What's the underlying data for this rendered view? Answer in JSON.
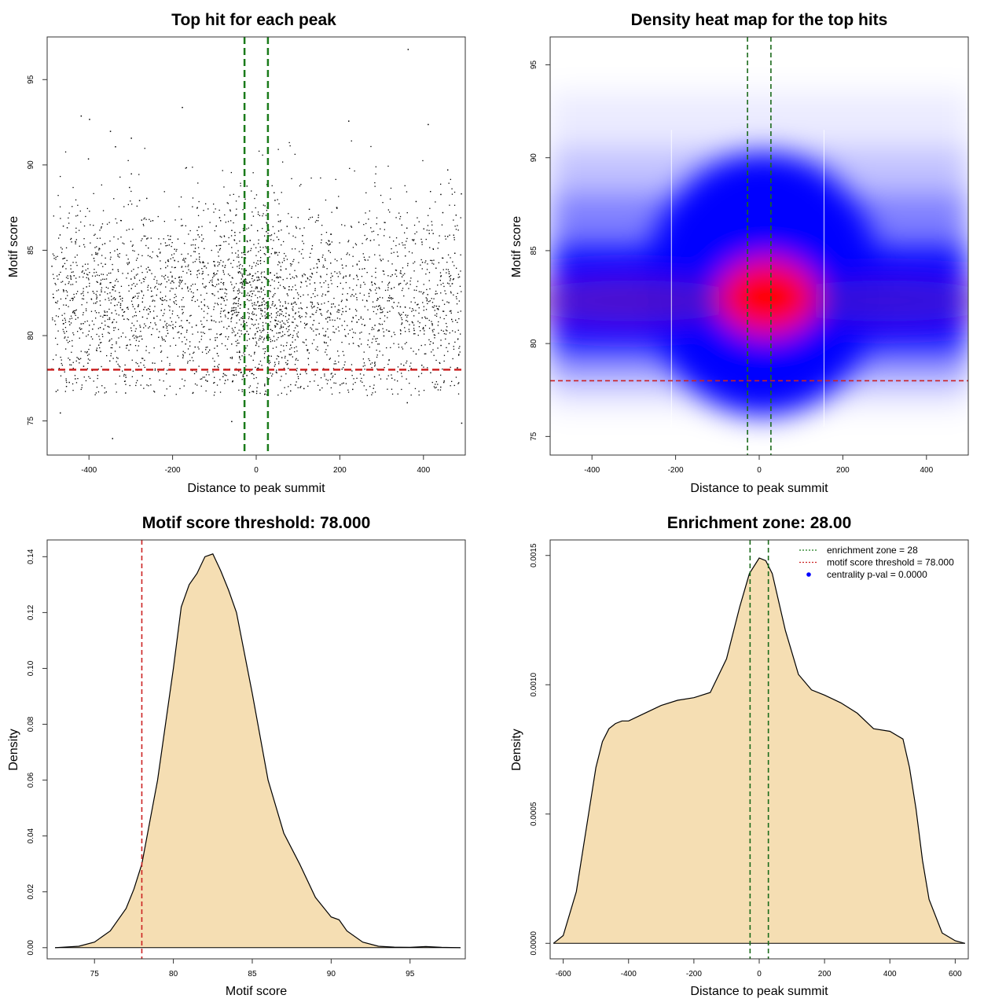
{
  "chart_data": [
    {
      "id": "scatter",
      "type": "scatter",
      "title": "Top hit for each peak",
      "xlabel": "Distance to peak summit",
      "ylabel": "Motif score",
      "xlim": [
        -500,
        500
      ],
      "ylim": [
        73,
        97.5
      ],
      "xticks": [
        -400,
        -200,
        0,
        200,
        400
      ],
      "yticks": [
        75,
        80,
        85,
        90,
        95
      ],
      "hlines": [
        {
          "y": 78,
          "color": "#cc2222",
          "style": "dashed"
        }
      ],
      "vlines": [
        {
          "x": -28,
          "color": "#1a7a1a",
          "style": "dashed"
        },
        {
          "x": 28,
          "color": "#1a7a1a",
          "style": "dashed"
        }
      ],
      "points_note_summary": {
        "n_points": 3600,
        "x_range": [
          -490,
          490
        ],
        "y_mode": 82,
        "y_spread": 3.0
      },
      "outliers": [
        {
          "x": 362,
          "y": 96.8
        },
        {
          "x": -178,
          "y": 93.4
        },
        {
          "x": -420,
          "y": 92.9
        },
        {
          "x": -400,
          "y": 92.7
        },
        {
          "x": 220,
          "y": 92.6
        },
        {
          "x": -350,
          "y": 92.0
        },
        {
          "x": -338,
          "y": 91.1
        },
        {
          "x": -300,
          "y": 91.6
        },
        {
          "x": 410,
          "y": 92.4
        },
        {
          "x": -345,
          "y": 74.0
        },
        {
          "x": -470,
          "y": 75.5
        },
        {
          "x": 490,
          "y": 74.9
        },
        {
          "x": -60,
          "y": 75.0
        },
        {
          "x": 360,
          "y": 76.1
        }
      ],
      "series": [
        {
          "values": [],
          "color": "#000000"
        }
      ]
    },
    {
      "id": "heatmap",
      "type": "heatmap",
      "title": "Density heat map for the top hits",
      "xlabel": "Distance to peak summit",
      "ylabel": "Motif score",
      "xlim": [
        -500,
        500
      ],
      "ylim": [
        74,
        96.5
      ],
      "xticks": [
        -400,
        -200,
        0,
        200,
        400
      ],
      "yticks": [
        75,
        80,
        85,
        90,
        95
      ],
      "hlines": [
        {
          "y": 78,
          "color": "#cc2222",
          "style": "dashed"
        }
      ],
      "vlines": [
        {
          "x": -28,
          "color": "#1a6a1a",
          "style": "dashed"
        },
        {
          "x": 28,
          "color": "#1a6a1a",
          "style": "dashed"
        }
      ],
      "colors": {
        "low": "#ffffff",
        "mid": "#0000ff",
        "high": "#ff0000"
      },
      "density_peak": {
        "x": 20,
        "y": 82.5
      }
    },
    {
      "id": "scoredens",
      "type": "area",
      "title": "Motif score threshold: 78.000",
      "xlabel": "Motif score",
      "ylabel": "Density",
      "xlim": [
        72,
        98.5
      ],
      "ylim": [
        -0.004,
        0.146
      ],
      "xticks": [
        75,
        80,
        85,
        90,
        95
      ],
      "yticks": [
        0.0,
        0.02,
        0.04,
        0.06,
        0.08,
        0.1,
        0.12,
        0.14
      ],
      "ytick_labels": [
        "0.00",
        "0.02",
        "0.04",
        "0.06",
        "0.08",
        "0.10",
        "0.12",
        "0.14"
      ],
      "fill": "#f5deb3",
      "vlines": [
        {
          "x": 78,
          "color": "#cc2222",
          "style": "dashed"
        }
      ],
      "x": [
        72.5,
        74,
        75,
        76,
        77,
        77.5,
        78,
        79,
        80,
        80.5,
        81,
        81.5,
        82,
        82.5,
        83,
        83.5,
        84,
        85,
        86,
        87,
        88,
        89,
        90,
        90.5,
        91,
        92,
        93,
        94,
        95,
        96,
        97,
        98.2
      ],
      "y": [
        0.0,
        0.0005,
        0.002,
        0.006,
        0.014,
        0.021,
        0.03,
        0.06,
        0.1,
        0.122,
        0.13,
        0.134,
        0.14,
        0.141,
        0.135,
        0.128,
        0.12,
        0.091,
        0.06,
        0.041,
        0.03,
        0.018,
        0.011,
        0.01,
        0.006,
        0.002,
        0.0005,
        0.0002,
        0.0001,
        0.0004,
        0.0001,
        0.0
      ]
    },
    {
      "id": "distdens",
      "type": "area",
      "title": "Enrichment zone: 28.00",
      "xlabel": "Distance to peak summit",
      "ylabel": "Density",
      "xlim": [
        -640,
        640
      ],
      "ylim": [
        -6e-05,
        0.00156
      ],
      "xticks": [
        -600,
        -400,
        -200,
        0,
        200,
        400,
        600
      ],
      "yticks": [
        0.0,
        0.0005,
        0.001,
        0.0015
      ],
      "ytick_labels": [
        "0.0000",
        "0.0005",
        "0.0010",
        "0.0015"
      ],
      "fill": "#f5deb3",
      "vlines": [
        {
          "x": -28,
          "color": "#1a6a1a",
          "style": "dashed"
        },
        {
          "x": 28,
          "color": "#1a6a1a",
          "style": "dashed"
        }
      ],
      "x": [
        -630,
        -600,
        -560,
        -520,
        -500,
        -480,
        -460,
        -440,
        -420,
        -400,
        -350,
        -300,
        -250,
        -200,
        -150,
        -100,
        -60,
        -30,
        0,
        20,
        40,
        80,
        120,
        160,
        200,
        250,
        300,
        350,
        400,
        440,
        460,
        480,
        500,
        520,
        560,
        600,
        630
      ],
      "y": [
        0.0,
        3e-05,
        0.0002,
        0.00052,
        0.00068,
        0.00078,
        0.00083,
        0.00085,
        0.00086,
        0.00086,
        0.00089,
        0.00092,
        0.00094,
        0.00095,
        0.00097,
        0.0011,
        0.0013,
        0.00143,
        0.00149,
        0.00148,
        0.00143,
        0.00121,
        0.00104,
        0.00098,
        0.00096,
        0.00093,
        0.00089,
        0.00083,
        0.00082,
        0.00079,
        0.00068,
        0.00052,
        0.00032,
        0.00017,
        4e-05,
        1e-05,
        0.0
      ],
      "legend": [
        {
          "label": "enrichment zone = 28",
          "color": "#1a7a1a",
          "marker": "dotted"
        },
        {
          "label": "motif score threshold = 78.000",
          "color": "#cc2222",
          "marker": "dotted"
        },
        {
          "label": "centrality p-val = 0.0000",
          "color": "#0000ff",
          "marker": "point"
        }
      ],
      "legend_position": "top-right"
    }
  ]
}
